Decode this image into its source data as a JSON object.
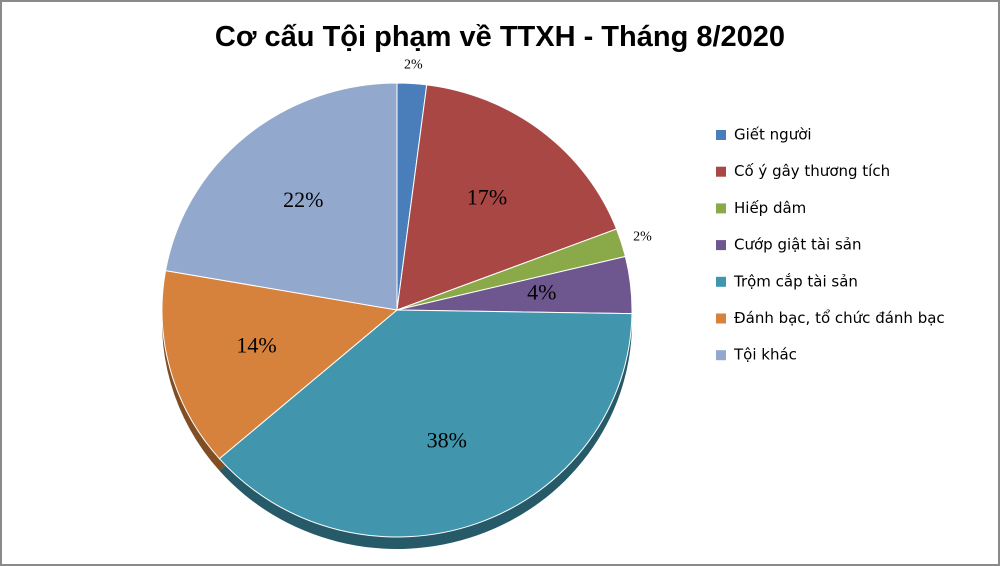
{
  "chart_data": {
    "type": "pie",
    "title": "Cơ cấu Tội phạm về TTXH - Tháng 8/2020",
    "categories": [
      "Giết người",
      "Cố ý gây thương tích",
      "Hiếp dâm",
      "Cướp giật tài sản",
      "Trộm cắp tài sản",
      "Đánh bạc, tổ chức đánh bạc",
      "Tội khác"
    ],
    "values": [
      2,
      17,
      2,
      4,
      38,
      14,
      22
    ],
    "value_labels": [
      "2%",
      "17%",
      "2%",
      "4%",
      "38%",
      "14%",
      "22%"
    ],
    "colors": [
      "#4a7ebb",
      "#a84744",
      "#8aaa4a",
      "#6e568f",
      "#4196ad",
      "#d6823c",
      "#93a8cd"
    ],
    "legend": "right"
  }
}
